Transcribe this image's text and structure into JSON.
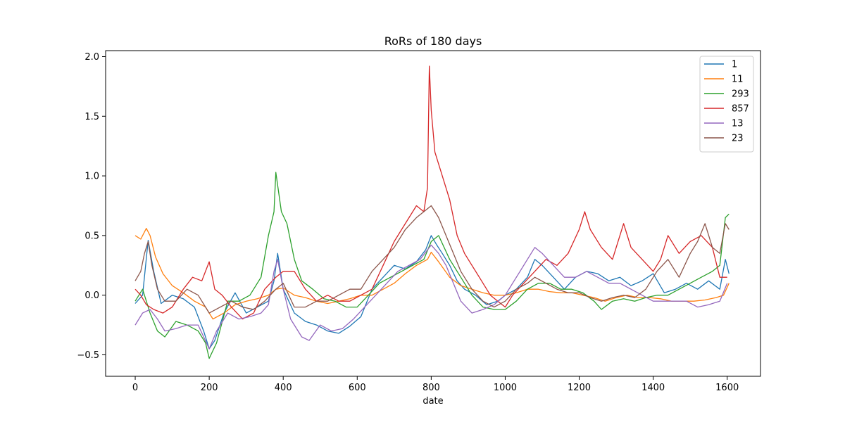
{
  "chart_data": {
    "type": "line",
    "title": "RoRs of 180 days",
    "xlabel": "date",
    "ylabel": "",
    "xlim": [
      -80,
      1690
    ],
    "ylim": [
      -0.68,
      2.05
    ],
    "x_ticks": [
      0,
      200,
      400,
      600,
      800,
      1000,
      1200,
      1400,
      1600
    ],
    "x_tick_labels": [
      "0",
      "200",
      "400",
      "600",
      "800",
      "1000",
      "1200",
      "1400",
      "1600"
    ],
    "y_ticks": [
      -0.5,
      0.0,
      0.5,
      1.0,
      1.5,
      2.0
    ],
    "y_tick_labels": [
      "−0.5",
      "0.0",
      "0.5",
      "1.0",
      "1.5",
      "2.0"
    ],
    "grid": false,
    "legend_position": "top-right",
    "series": [
      {
        "name": "1",
        "color": "#1f77b4",
        "x": [
          0,
          20,
          35,
          50,
          70,
          100,
          130,
          160,
          185,
          200,
          215,
          240,
          270,
          300,
          330,
          360,
          375,
          385,
          400,
          430,
          460,
          490,
          520,
          550,
          580,
          610,
          640,
          670,
          700,
          730,
          760,
          785,
          800,
          815,
          830,
          850,
          870,
          890,
          920,
          950,
          980,
          1000,
          1030,
          1060,
          1080,
          1100,
          1130,
          1160,
          1190,
          1220,
          1250,
          1280,
          1310,
          1340,
          1370,
          1400,
          1430,
          1460,
          1490,
          1520,
          1550,
          1580,
          1595,
          1605
        ],
        "y": [
          -0.07,
          0.0,
          0.46,
          0.2,
          -0.07,
          0.0,
          -0.03,
          -0.1,
          -0.3,
          -0.45,
          -0.38,
          -0.15,
          0.02,
          -0.15,
          -0.1,
          -0.05,
          0.12,
          0.35,
          0.05,
          -0.15,
          -0.22,
          -0.25,
          -0.3,
          -0.32,
          -0.26,
          -0.18,
          0.05,
          0.15,
          0.25,
          0.22,
          0.28,
          0.38,
          0.5,
          0.42,
          0.35,
          0.25,
          0.12,
          0.05,
          0.0,
          -0.08,
          -0.05,
          0.0,
          0.05,
          0.15,
          0.3,
          0.25,
          0.15,
          0.05,
          0.15,
          0.2,
          0.18,
          0.12,
          0.15,
          0.08,
          0.12,
          0.18,
          0.02,
          0.05,
          0.1,
          0.05,
          0.12,
          0.05,
          0.3,
          0.18
        ]
      },
      {
        "name": "11",
        "color": "#ff7f0e",
        "x": [
          0,
          15,
          30,
          40,
          55,
          75,
          100,
          130,
          160,
          190,
          210,
          240,
          270,
          300,
          330,
          360,
          380,
          400,
          430,
          460,
          490,
          520,
          550,
          580,
          610,
          640,
          670,
          700,
          730,
          760,
          790,
          800,
          820,
          850,
          880,
          910,
          940,
          970,
          1000,
          1030,
          1060,
          1090,
          1120,
          1150,
          1180,
          1210,
          1240,
          1270,
          1300,
          1330,
          1360,
          1390,
          1420,
          1450,
          1480,
          1510,
          1540,
          1570,
          1590,
          1605
        ],
        "y": [
          0.5,
          0.47,
          0.56,
          0.5,
          0.32,
          0.18,
          0.08,
          0.02,
          -0.05,
          -0.1,
          -0.2,
          -0.15,
          -0.08,
          -0.05,
          -0.03,
          0.0,
          0.05,
          0.06,
          0.0,
          -0.02,
          -0.05,
          -0.07,
          -0.05,
          -0.03,
          0.0,
          0.0,
          0.05,
          0.1,
          0.18,
          0.25,
          0.3,
          0.36,
          0.28,
          0.15,
          0.08,
          0.05,
          0.02,
          0.0,
          0.0,
          0.02,
          0.05,
          0.05,
          0.03,
          0.02,
          0.02,
          0.0,
          -0.02,
          -0.05,
          -0.02,
          0.0,
          -0.02,
          -0.02,
          -0.03,
          -0.05,
          -0.05,
          -0.05,
          -0.04,
          -0.02,
          0.0,
          0.1
        ]
      },
      {
        "name": "293",
        "color": "#2ca02c",
        "x": [
          0,
          20,
          40,
          60,
          80,
          110,
          140,
          170,
          190,
          200,
          220,
          250,
          280,
          310,
          340,
          360,
          375,
          380,
          395,
          410,
          430,
          450,
          480,
          510,
          540,
          570,
          600,
          630,
          660,
          690,
          720,
          750,
          780,
          800,
          820,
          850,
          880,
          910,
          940,
          970,
          1000,
          1030,
          1060,
          1090,
          1120,
          1150,
          1180,
          1210,
          1240,
          1260,
          1290,
          1320,
          1350,
          1380,
          1410,
          1440,
          1470,
          1500,
          1530,
          1560,
          1580,
          1595,
          1605
        ],
        "y": [
          -0.05,
          0.05,
          -0.15,
          -0.3,
          -0.35,
          -0.22,
          -0.25,
          -0.3,
          -0.4,
          -0.53,
          -0.4,
          -0.05,
          -0.05,
          0.0,
          0.15,
          0.5,
          0.7,
          1.03,
          0.7,
          0.6,
          0.3,
          0.12,
          0.05,
          -0.03,
          -0.05,
          -0.1,
          -0.1,
          0.0,
          0.1,
          0.15,
          0.2,
          0.25,
          0.3,
          0.45,
          0.5,
          0.3,
          0.15,
          0.0,
          -0.1,
          -0.12,
          -0.12,
          -0.05,
          0.05,
          0.1,
          0.1,
          0.05,
          0.05,
          0.02,
          -0.05,
          -0.12,
          -0.05,
          -0.03,
          -0.05,
          -0.02,
          0.0,
          0.0,
          0.05,
          0.1,
          0.15,
          0.2,
          0.25,
          0.65,
          0.68
        ]
      },
      {
        "name": "857",
        "color": "#d62728",
        "x": [
          0,
          15,
          30,
          50,
          75,
          100,
          130,
          155,
          180,
          200,
          215,
          235,
          260,
          290,
          320,
          350,
          380,
          400,
          430,
          460,
          490,
          520,
          550,
          580,
          610,
          640,
          670,
          700,
          730,
          760,
          780,
          790,
          795,
          800,
          810,
          830,
          850,
          870,
          890,
          910,
          930,
          960,
          980,
          1000,
          1020,
          1050,
          1080,
          1110,
          1140,
          1170,
          1200,
          1215,
          1230,
          1260,
          1290,
          1320,
          1340,
          1370,
          1400,
          1420,
          1440,
          1470,
          1500,
          1530,
          1560,
          1580,
          1600
        ],
        "y": [
          0.05,
          0.0,
          -0.08,
          -0.12,
          -0.15,
          -0.1,
          0.05,
          0.15,
          0.12,
          0.28,
          0.05,
          0.0,
          -0.1,
          -0.2,
          -0.15,
          0.05,
          0.15,
          0.2,
          0.2,
          0.05,
          -0.05,
          0.0,
          -0.05,
          -0.05,
          0.0,
          0.05,
          0.25,
          0.45,
          0.6,
          0.75,
          0.7,
          0.9,
          1.92,
          1.55,
          1.2,
          1.0,
          0.8,
          0.5,
          0.35,
          0.25,
          0.15,
          0.0,
          -0.05,
          -0.1,
          0.0,
          0.1,
          0.2,
          0.3,
          0.25,
          0.35,
          0.55,
          0.7,
          0.55,
          0.4,
          0.3,
          0.6,
          0.4,
          0.3,
          0.2,
          0.3,
          0.5,
          0.35,
          0.45,
          0.5,
          0.4,
          0.15,
          0.15
        ]
      },
      {
        "name": "13",
        "color": "#9467bd",
        "x": [
          0,
          20,
          40,
          60,
          80,
          110,
          140,
          170,
          200,
          220,
          250,
          280,
          310,
          340,
          360,
          375,
          385,
          400,
          420,
          450,
          470,
          500,
          530,
          560,
          590,
          620,
          650,
          680,
          710,
          740,
          770,
          800,
          820,
          840,
          860,
          880,
          910,
          940,
          970,
          1000,
          1020,
          1040,
          1060,
          1080,
          1100,
          1130,
          1160,
          1190,
          1220,
          1250,
          1280,
          1310,
          1340,
          1370,
          1400,
          1430,
          1460,
          1490,
          1520,
          1550,
          1580,
          1600
        ],
        "y": [
          -0.25,
          -0.15,
          -0.12,
          -0.2,
          -0.3,
          -0.28,
          -0.25,
          -0.25,
          -0.45,
          -0.3,
          -0.15,
          -0.2,
          -0.18,
          -0.15,
          -0.08,
          0.2,
          0.3,
          0.05,
          -0.2,
          -0.35,
          -0.38,
          -0.25,
          -0.3,
          -0.28,
          -0.2,
          -0.1,
          0.0,
          0.1,
          0.2,
          0.25,
          0.3,
          0.42,
          0.35,
          0.25,
          0.1,
          -0.05,
          -0.15,
          -0.12,
          -0.08,
          0.0,
          0.1,
          0.2,
          0.3,
          0.4,
          0.35,
          0.25,
          0.15,
          0.15,
          0.2,
          0.15,
          0.1,
          0.1,
          0.05,
          0.0,
          -0.05,
          -0.05,
          -0.05,
          -0.05,
          -0.1,
          -0.08,
          -0.05,
          0.1
        ]
      },
      {
        "name": "23",
        "color": "#8c564b",
        "x": [
          0,
          15,
          25,
          35,
          45,
          60,
          80,
          110,
          140,
          170,
          200,
          230,
          260,
          290,
          320,
          350,
          380,
          400,
          430,
          460,
          490,
          520,
          550,
          580,
          610,
          640,
          670,
          700,
          730,
          760,
          780,
          800,
          820,
          840,
          860,
          880,
          910,
          940,
          970,
          1000,
          1030,
          1060,
          1080,
          1110,
          1140,
          1170,
          1200,
          1230,
          1260,
          1290,
          1320,
          1350,
          1380,
          1410,
          1440,
          1470,
          1500,
          1520,
          1540,
          1560,
          1580,
          1595,
          1605
        ],
        "y": [
          0.12,
          0.2,
          0.35,
          0.45,
          0.25,
          0.05,
          -0.05,
          -0.05,
          0.05,
          0.0,
          -0.15,
          -0.1,
          -0.05,
          -0.1,
          -0.12,
          -0.05,
          0.05,
          0.1,
          -0.1,
          -0.1,
          -0.05,
          -0.05,
          0.0,
          0.05,
          0.05,
          0.2,
          0.3,
          0.4,
          0.55,
          0.65,
          0.7,
          0.75,
          0.65,
          0.5,
          0.35,
          0.2,
          0.05,
          -0.05,
          -0.1,
          -0.05,
          0.05,
          0.1,
          0.15,
          0.1,
          0.05,
          0.02,
          0.02,
          -0.02,
          -0.05,
          -0.02,
          0.0,
          -0.02,
          0.05,
          0.2,
          0.3,
          0.15,
          0.35,
          0.45,
          0.6,
          0.4,
          0.35,
          0.6,
          0.55
        ]
      }
    ]
  }
}
